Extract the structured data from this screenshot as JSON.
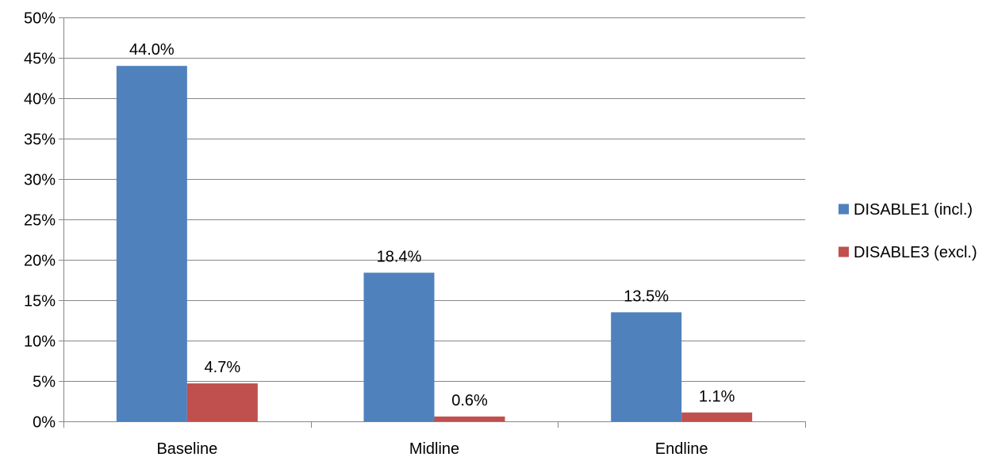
{
  "chart_data": {
    "type": "bar",
    "title": "",
    "xlabel": "",
    "ylabel": "",
    "categories": [
      "Baseline",
      "Midline",
      "Endline"
    ],
    "series": [
      {
        "name": "DISABLE1 (incl.)",
        "color": "#4f81bd",
        "values": [
          44.0,
          18.4,
          13.5
        ],
        "labels": [
          "44.0%",
          "18.4%",
          "13.5%"
        ]
      },
      {
        "name": "DISABLE3 (excl.)",
        "color": "#c0504d",
        "values": [
          4.7,
          0.6,
          1.1
        ],
        "labels": [
          "4.7%",
          "0.6%",
          "1.1%"
        ]
      }
    ],
    "ylim": [
      0,
      50
    ],
    "yticks": [
      0,
      5,
      10,
      15,
      20,
      25,
      30,
      35,
      40,
      45,
      50
    ],
    "ytick_labels": [
      "0%",
      "5%",
      "10%",
      "15%",
      "20%",
      "25%",
      "30%",
      "35%",
      "40%",
      "45%",
      "50%"
    ],
    "grid": true,
    "legend_position": "right"
  }
}
